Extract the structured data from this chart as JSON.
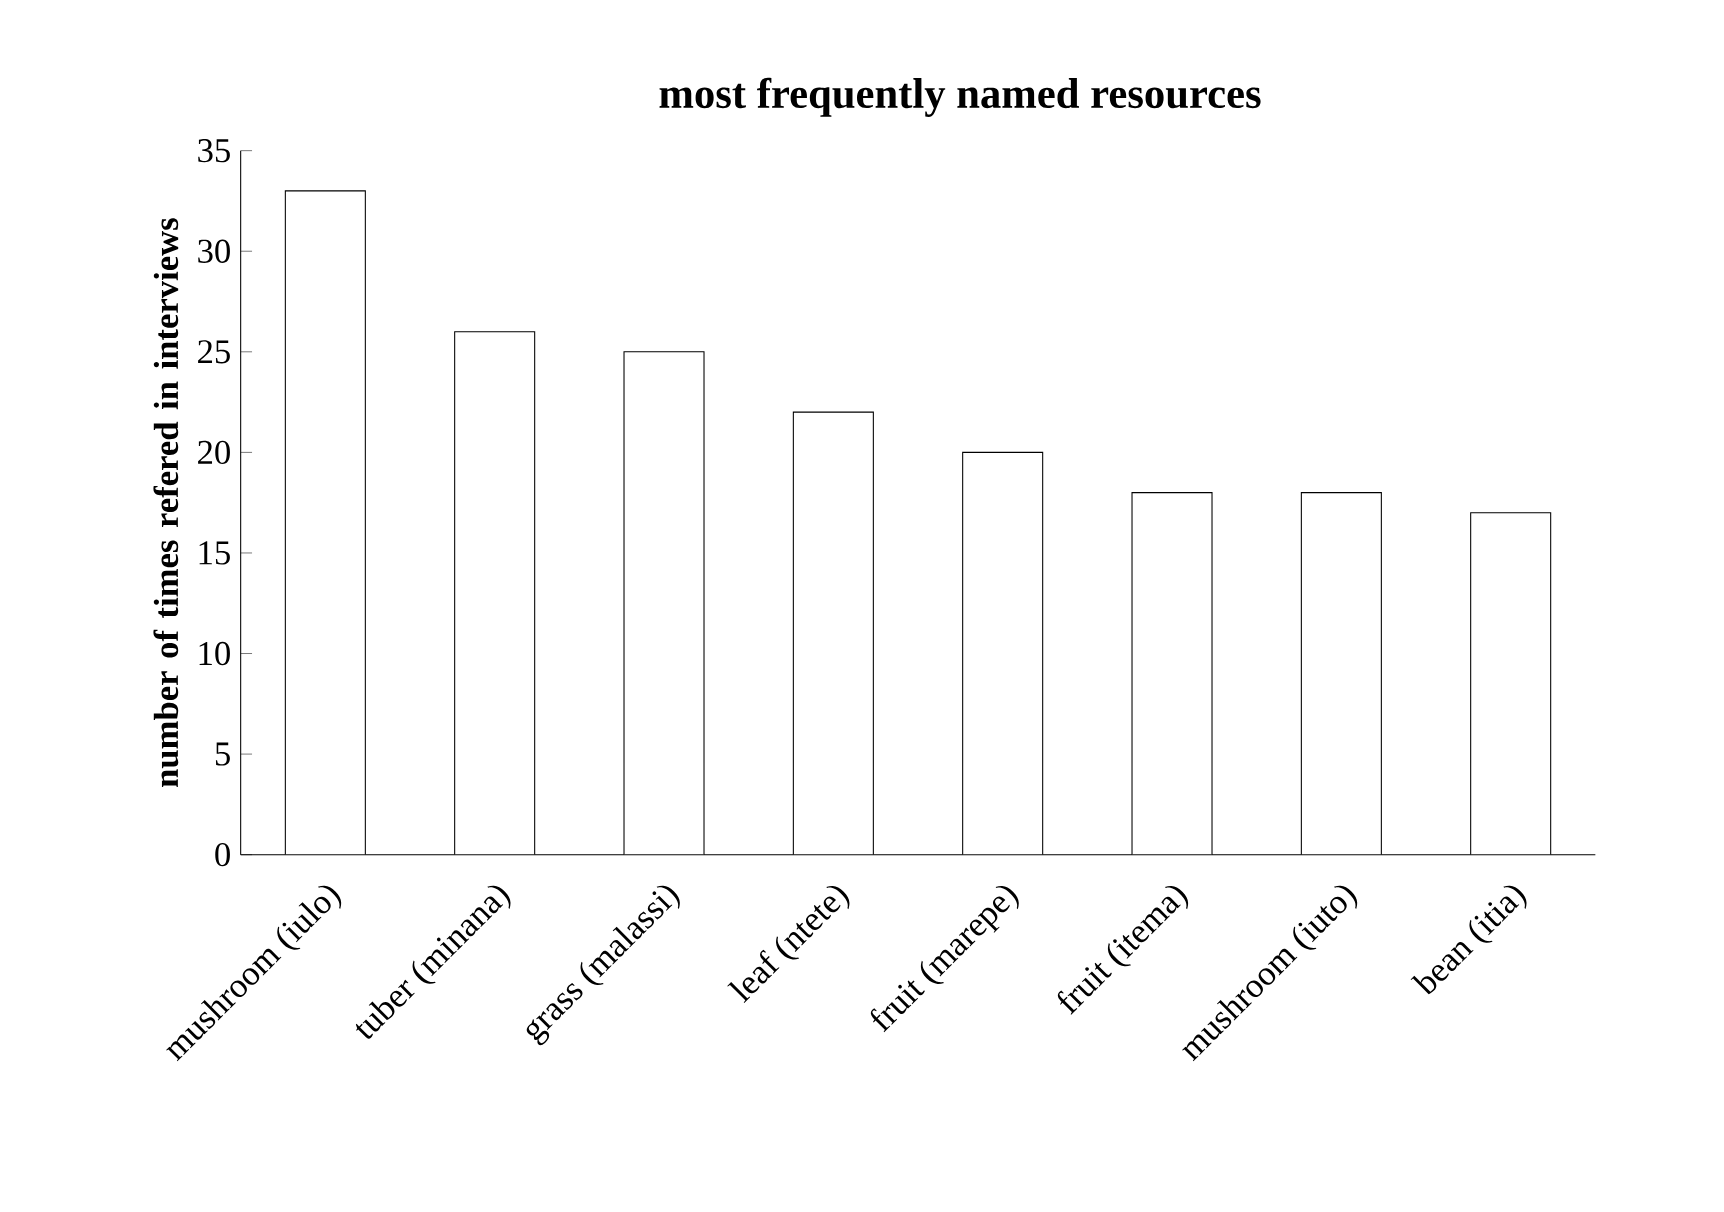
{
  "chart_data": {
    "type": "bar",
    "title": "most frequently named resources",
    "ylabel": "number of times refered in interviews",
    "categories": [
      "mushroom (iulo)",
      "tuber (minana)",
      "grass (malassi)",
      "leaf (ntete)",
      "fruit (marepe)",
      "fruit (itema)",
      "mushroom (iuto)",
      "bean (itia)"
    ],
    "values": [
      33,
      26,
      25,
      22,
      20,
      18,
      18,
      17
    ],
    "color": "#ffffff",
    "ylim": [
      0,
      35
    ],
    "yticks": [
      0,
      5,
      10,
      15,
      20,
      25,
      30,
      35
    ]
  }
}
